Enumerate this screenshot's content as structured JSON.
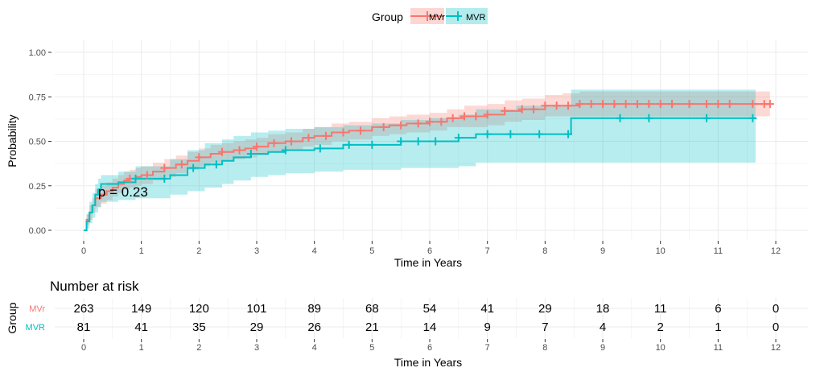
{
  "chart_data": {
    "type": "survival",
    "legend": {
      "title": "Group",
      "placement": "top",
      "entries": [
        {
          "name": "MVr",
          "color": "#F8766D"
        },
        {
          "name": "MVR",
          "color": "#00BFC4"
        }
      ]
    },
    "xlabel": "Time in Years",
    "ylabel": "Probability",
    "xlim": [
      0,
      12
    ],
    "ylim": [
      0,
      1
    ],
    "x_ticks": [
      "0",
      "1",
      "2",
      "3",
      "4",
      "5",
      "6",
      "7",
      "8",
      "9",
      "10",
      "11",
      "12"
    ],
    "y_ticks": [
      "0.00",
      "0.25",
      "0.50",
      "0.75",
      "1.00"
    ],
    "grid": true,
    "annotation": "p = 0.23",
    "annotation_position": {
      "x": 0.25,
      "y": 0.19
    },
    "series": [
      {
        "name": "MVr",
        "color": "#F8766D",
        "x": [
          0,
          0.05,
          0.1,
          0.15,
          0.2,
          0.3,
          0.4,
          0.5,
          0.6,
          0.7,
          0.8,
          0.9,
          1.0,
          1.2,
          1.4,
          1.6,
          1.8,
          2.0,
          2.2,
          2.4,
          2.6,
          2.8,
          3.0,
          3.2,
          3.5,
          3.8,
          4.0,
          4.3,
          4.6,
          5.0,
          5.3,
          5.6,
          6.0,
          6.3,
          6.6,
          7.0,
          7.3,
          7.6,
          8.0,
          8.3,
          8.6,
          9.0,
          9.5,
          10.0,
          10.5,
          11.0,
          11.5,
          11.9
        ],
        "y": [
          0,
          0.06,
          0.1,
          0.14,
          0.18,
          0.2,
          0.22,
          0.24,
          0.26,
          0.28,
          0.29,
          0.3,
          0.31,
          0.33,
          0.35,
          0.37,
          0.39,
          0.41,
          0.43,
          0.44,
          0.45,
          0.46,
          0.47,
          0.49,
          0.5,
          0.52,
          0.53,
          0.55,
          0.56,
          0.58,
          0.59,
          0.6,
          0.61,
          0.63,
          0.64,
          0.65,
          0.67,
          0.68,
          0.7,
          0.7,
          0.71,
          0.71,
          0.71,
          0.71,
          0.71,
          0.71,
          0.71,
          0.71
        ],
        "lower": [
          0,
          0.03,
          0.06,
          0.1,
          0.13,
          0.15,
          0.17,
          0.19,
          0.21,
          0.23,
          0.24,
          0.25,
          0.26,
          0.28,
          0.3,
          0.32,
          0.34,
          0.36,
          0.38,
          0.39,
          0.4,
          0.41,
          0.42,
          0.44,
          0.45,
          0.47,
          0.48,
          0.5,
          0.51,
          0.53,
          0.54,
          0.55,
          0.56,
          0.58,
          0.58,
          0.59,
          0.61,
          0.62,
          0.64,
          0.64,
          0.64,
          0.64,
          0.64,
          0.64,
          0.64,
          0.64,
          0.64,
          0.64
        ],
        "upper": [
          0,
          0.09,
          0.14,
          0.18,
          0.23,
          0.25,
          0.27,
          0.29,
          0.31,
          0.33,
          0.34,
          0.35,
          0.36,
          0.38,
          0.4,
          0.42,
          0.44,
          0.46,
          0.48,
          0.49,
          0.5,
          0.51,
          0.52,
          0.54,
          0.55,
          0.57,
          0.58,
          0.6,
          0.61,
          0.63,
          0.64,
          0.65,
          0.66,
          0.68,
          0.7,
          0.71,
          0.73,
          0.74,
          0.76,
          0.77,
          0.78,
          0.78,
          0.78,
          0.78,
          0.78,
          0.78,
          0.78,
          0.78
        ],
        "censor_x": [
          0.8,
          1.1,
          1.4,
          1.7,
          2.0,
          2.4,
          2.7,
          3.0,
          3.3,
          3.6,
          3.9,
          4.2,
          4.5,
          4.8,
          5.2,
          5.5,
          5.8,
          6.0,
          6.2,
          6.4,
          6.6,
          6.8,
          7.0,
          7.3,
          7.6,
          7.8,
          8.0,
          8.2,
          8.4,
          8.6,
          8.8,
          9.0,
          9.2,
          9.4,
          9.6,
          9.8,
          10.0,
          10.2,
          10.5,
          10.8,
          11.0,
          11.2,
          11.6,
          11.8,
          11.9
        ]
      },
      {
        "name": "MVR",
        "color": "#00BFC4",
        "x": [
          0,
          0.05,
          0.1,
          0.15,
          0.2,
          0.25,
          0.3,
          0.6,
          0.9,
          1.5,
          1.8,
          2.1,
          2.4,
          2.6,
          2.9,
          3.2,
          3.5,
          4.0,
          4.5,
          5.0,
          5.5,
          6.0,
          6.5,
          6.8,
          7.5,
          8.45,
          9.0,
          10.0,
          11.0,
          11.65
        ],
        "y": [
          0,
          0.05,
          0.1,
          0.14,
          0.2,
          0.23,
          0.26,
          0.27,
          0.29,
          0.31,
          0.35,
          0.37,
          0.39,
          0.41,
          0.43,
          0.44,
          0.45,
          0.46,
          0.48,
          0.48,
          0.5,
          0.5,
          0.52,
          0.54,
          0.54,
          0.63,
          0.63,
          0.63,
          0.63,
          0.63
        ],
        "lower": [
          0,
          0.01,
          0.04,
          0.07,
          0.1,
          0.13,
          0.16,
          0.17,
          0.18,
          0.2,
          0.22,
          0.24,
          0.26,
          0.28,
          0.3,
          0.31,
          0.32,
          0.33,
          0.34,
          0.34,
          0.35,
          0.35,
          0.36,
          0.38,
          0.38,
          0.38,
          0.38,
          0.38,
          0.38,
          0.38
        ],
        "upper": [
          0,
          0.09,
          0.16,
          0.21,
          0.26,
          0.29,
          0.31,
          0.33,
          0.36,
          0.4,
          0.45,
          0.49,
          0.51,
          0.53,
          0.55,
          0.56,
          0.57,
          0.58,
          0.59,
          0.6,
          0.62,
          0.63,
          0.65,
          0.68,
          0.7,
          0.79,
          0.79,
          0.79,
          0.79,
          0.79
        ],
        "censor_x": [
          0.9,
          1.4,
          1.9,
          2.3,
          2.9,
          3.5,
          4.1,
          4.6,
          5.0,
          5.5,
          5.8,
          6.1,
          6.5,
          7.0,
          7.4,
          7.9,
          8.4,
          9.3,
          9.8,
          10.8,
          11.6
        ]
      }
    ]
  },
  "risk_table": {
    "title": "Number at risk",
    "y_title": "Group",
    "xlabel": "Time in Years",
    "x_ticks": [
      "0",
      "1",
      "2",
      "3",
      "4",
      "5",
      "6",
      "7",
      "8",
      "9",
      "10",
      "11",
      "12"
    ],
    "rows": [
      {
        "name": "MVr",
        "color": "#F8766D",
        "values": [
          "263",
          "149",
          "120",
          "101",
          "89",
          "68",
          "54",
          "41",
          "29",
          "18",
          "11",
          "6",
          "0"
        ]
      },
      {
        "name": "MVR",
        "color": "#00BFC4",
        "values": [
          "81",
          "41",
          "35",
          "29",
          "26",
          "21",
          "14",
          "9",
          "7",
          "4",
          "2",
          "1",
          "0"
        ]
      }
    ]
  }
}
